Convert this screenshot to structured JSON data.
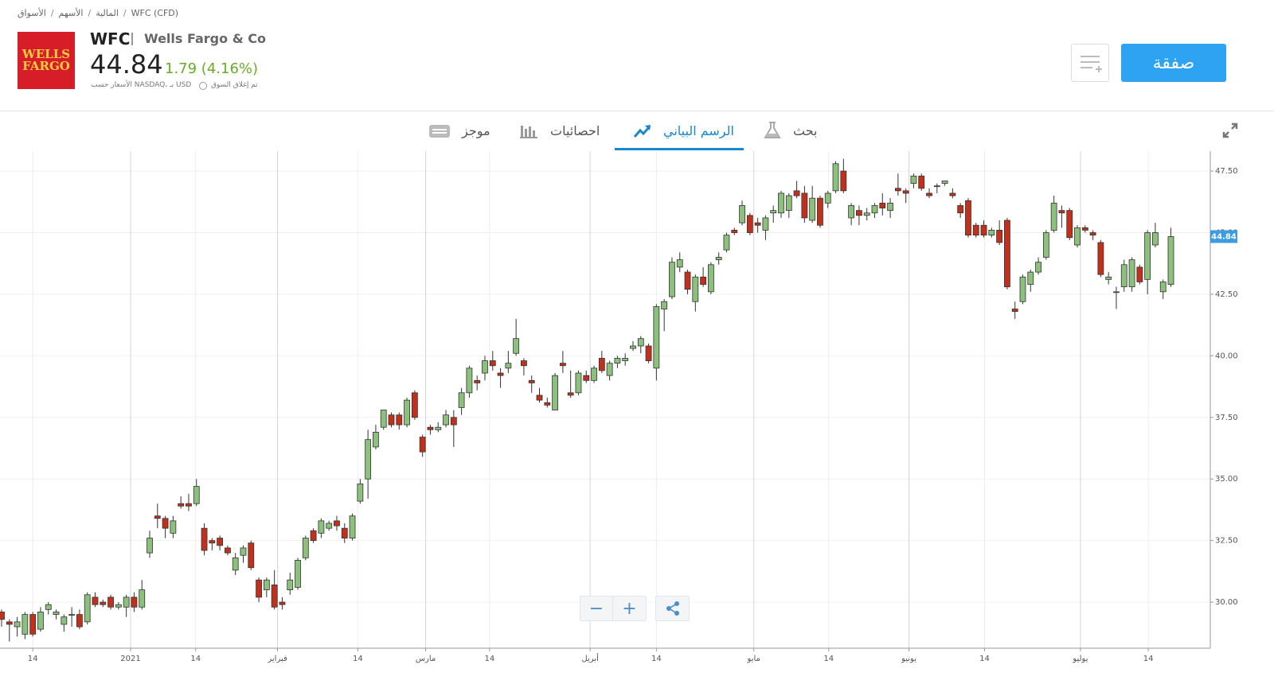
{
  "header": {
    "breadcrumb": [
      "الأسواق",
      "الأسهم",
      "المالية",
      "WFC (CFD)"
    ],
    "logo": "WELLS FARGO",
    "ticker": "WFC",
    "name": "Wells Fargo & Co",
    "price": "44.84",
    "change": "1.79 (4.16%)",
    "source": "الأسعار حسب NASDAQ، بـ USD",
    "status": "تم إغلاق السوق",
    "trade_button": "صفقة"
  },
  "tabs": [
    "موجز",
    "احصائيات",
    "الرسم البياني",
    "بحث"
  ],
  "active_tab": 2,
  "controls": {
    "zoom_out": "−",
    "zoom_in": "+"
  },
  "chart_data": {
    "type": "candlestick",
    "up_color": "#8cc07c",
    "down_color": "#c1301c",
    "grid": true,
    "open": [
      29.6,
      29.2,
      29.0,
      28.7,
      29.5,
      28.9,
      29.7,
      29.5,
      29.1,
      29.5,
      29.5,
      29.2,
      30.2,
      30.0,
      30.2,
      29.8,
      29.8,
      30.2,
      29.8,
      32.0,
      33.5,
      33.4,
      32.8,
      34.0,
      34.0,
      34.0,
      33.0,
      32.5,
      32.6,
      32.2,
      31.3,
      31.9,
      32.4,
      30.9,
      30.5,
      30.7,
      30.0,
      30.5,
      30.6,
      31.8,
      32.9,
      32.8,
      33.0,
      33.3,
      33.0,
      32.6,
      34.1,
      35.0,
      36.3,
      37.1,
      37.6,
      37.6,
      37.2,
      38.5,
      36.7,
      37.1,
      37.0,
      37.2,
      37.5,
      37.9,
      38.5,
      39.0,
      39.3,
      39.8,
      39.3,
      39.5,
      40.1,
      39.8,
      39.0,
      38.4,
      38.1,
      37.8,
      39.7,
      38.5,
      38.5,
      39.2,
      39.0,
      39.9,
      39.2,
      39.7,
      39.8,
      40.3,
      40.4,
      40.4,
      39.5,
      41.9,
      42.4,
      43.6,
      43.4,
      42.2,
      43.2,
      42.6,
      43.9,
      44.3,
      45.1,
      45.4,
      45.7,
      45.4,
      45.1,
      45.8,
      45.8,
      45.9,
      46.7,
      46.6,
      45.5,
      46.4,
      46.2,
      46.7,
      47.5,
      45.6,
      45.9,
      45.7,
      45.8,
      46.2,
      45.9,
      46.8,
      46.7,
      47.0,
      47.3,
      46.6,
      46.9,
      47.0,
      46.6,
      46.1,
      46.3,
      45.3,
      45.3,
      44.9,
      45.1,
      45.5,
      41.9,
      42.2,
      42.9,
      43.4,
      44.0,
      45.1,
      45.9,
      45.9,
      44.5,
      45.2,
      45.0,
      44.6,
      43.1,
      42.6,
      42.8,
      42.8,
      43.6,
      43.1,
      44.5,
      42.6,
      42.9
    ],
    "high": [
      29.7,
      29.3,
      29.4,
      29.6,
      29.6,
      29.8,
      30.0,
      29.7,
      29.5,
      29.8,
      29.7,
      30.4,
      30.4,
      30.1,
      30.3,
      30.0,
      30.3,
      30.4,
      30.9,
      32.9,
      34.0,
      33.5,
      33.5,
      34.3,
      34.4,
      35.0,
      33.2,
      32.6,
      32.7,
      32.3,
      32.0,
      32.3,
      32.5,
      31.0,
      31.0,
      31.3,
      30.2,
      31.2,
      31.8,
      32.7,
      33.0,
      33.4,
      33.3,
      33.5,
      33.2,
      33.6,
      35.0,
      37.0,
      37.2,
      37.8,
      37.7,
      37.7,
      38.3,
      38.6,
      36.8,
      37.2,
      37.3,
      37.8,
      37.8,
      38.7,
      39.6,
      39.2,
      40.0,
      40.2,
      39.5,
      40.2,
      41.5,
      39.9,
      39.2,
      38.7,
      38.3,
      39.3,
      40.2,
      39.4,
      39.4,
      39.4,
      39.6,
      40.2,
      39.8,
      40.0,
      40.1,
      40.6,
      40.8,
      40.5,
      42.1,
      42.3,
      44.0,
      44.2,
      43.5,
      43.3,
      43.6,
      43.8,
      44.2,
      45.0,
      45.2,
      46.3,
      45.8,
      45.6,
      45.7,
      46.1,
      46.7,
      46.6,
      47.1,
      46.9,
      46.9,
      46.5,
      46.7,
      47.9,
      48.0,
      46.2,
      46.1,
      46.0,
      46.2,
      46.6,
      46.4,
      47.4,
      46.8,
      47.4,
      47.4,
      46.8,
      47.0,
      47.1,
      46.8,
      46.2,
      46.4,
      45.4,
      45.5,
      45.2,
      45.5,
      45.6,
      42.2,
      43.3,
      43.5,
      44.0,
      45.1,
      46.5,
      46.1,
      46.0,
      45.3,
      45.3,
      45.1,
      44.7,
      43.4,
      42.8,
      43.9,
      44.0,
      43.7,
      45.1,
      45.4,
      43.1,
      45.2
    ],
    "low": [
      29.0,
      28.4,
      28.6,
      28.5,
      28.6,
      28.8,
      29.5,
      29.3,
      28.8,
      29.0,
      28.9,
      29.1,
      29.8,
      29.8,
      29.7,
      29.7,
      29.4,
      29.6,
      29.7,
      31.8,
      33.0,
      32.6,
      32.6,
      33.8,
      33.7,
      33.9,
      31.9,
      32.1,
      32.1,
      31.9,
      31.1,
      31.6,
      31.3,
      30.0,
      30.2,
      29.7,
      29.7,
      30.3,
      30.5,
      31.7,
      32.4,
      32.6,
      32.9,
      32.9,
      32.4,
      32.5,
      34.0,
      34.2,
      36.2,
      37.0,
      37.1,
      37.0,
      37.1,
      37.4,
      35.9,
      36.8,
      36.9,
      37.1,
      36.3,
      37.6,
      38.3,
      38.6,
      39.0,
      39.4,
      38.7,
      39.3,
      40.0,
      39.2,
      38.5,
      38.1,
      37.9,
      37.8,
      39.3,
      38.3,
      38.4,
      38.9,
      38.9,
      39.3,
      39.0,
      39.5,
      39.6,
      40.2,
      40.1,
      39.7,
      39.0,
      41.0,
      42.3,
      43.4,
      42.5,
      41.8,
      42.8,
      42.5,
      43.7,
      44.2,
      44.9,
      45.3,
      44.9,
      45.0,
      44.7,
      45.4,
      45.6,
      45.6,
      46.4,
      45.4,
      45.4,
      45.2,
      46.0,
      46.6,
      46.6,
      45.3,
      45.3,
      45.5,
      45.6,
      45.7,
      45.6,
      46.5,
      46.2,
      46.8,
      46.7,
      46.4,
      46.6,
      46.9,
      46.4,
      45.6,
      44.8,
      44.8,
      44.8,
      44.8,
      44.5,
      42.7,
      41.5,
      42.1,
      42.6,
      43.3,
      43.9,
      45.0,
      45.2,
      44.7,
      44.4,
      45.0,
      44.7,
      43.2,
      42.9,
      41.9,
      42.6,
      42.6,
      42.9,
      42.5,
      44.4,
      42.3,
      42.8
    ],
    "close": [
      29.3,
      29.1,
      29.2,
      29.5,
      28.7,
      29.6,
      29.9,
      29.6,
      29.4,
      29.5,
      29.0,
      30.3,
      29.9,
      29.9,
      29.8,
      29.9,
      30.2,
      29.8,
      30.5,
      32.6,
      33.4,
      33.0,
      33.3,
      33.9,
      33.9,
      34.7,
      32.1,
      32.4,
      32.3,
      32.0,
      31.8,
      32.2,
      31.4,
      30.2,
      30.9,
      29.8,
      29.9,
      30.9,
      31.7,
      32.6,
      32.5,
      33.3,
      33.2,
      33.1,
      32.6,
      33.5,
      34.8,
      36.6,
      36.9,
      37.8,
      37.2,
      37.2,
      38.2,
      37.5,
      36.1,
      37.0,
      37.1,
      37.6,
      37.2,
      38.5,
      39.5,
      38.9,
      39.8,
      39.6,
      39.2,
      39.7,
      40.7,
      39.6,
      38.9,
      38.2,
      38.0,
      39.2,
      39.6,
      38.4,
      39.3,
      39.0,
      39.5,
      39.4,
      39.7,
      39.9,
      39.9,
      40.4,
      40.7,
      39.8,
      42.0,
      42.2,
      43.8,
      43.9,
      42.7,
      43.2,
      42.9,
      43.7,
      44.0,
      44.9,
      45.0,
      46.1,
      45.0,
      45.3,
      45.6,
      45.9,
      46.6,
      46.5,
      46.5,
      45.6,
      46.4,
      45.3,
      46.6,
      47.8,
      46.7,
      46.1,
      45.7,
      45.8,
      46.1,
      46.0,
      46.2,
      46.7,
      46.6,
      47.3,
      46.8,
      46.5,
      46.9,
      47.1,
      46.5,
      45.8,
      44.9,
      44.9,
      44.9,
      45.1,
      44.6,
      42.8,
      41.8,
      43.2,
      43.4,
      43.8,
      45.0,
      46.2,
      45.8,
      44.8,
      45.2,
      45.1,
      44.9,
      43.3,
      43.2,
      42.6,
      43.7,
      43.9,
      43.0,
      45.0,
      45.0,
      43.0,
      44.84
    ],
    "ylim": [
      28.13,
      48.31
    ],
    "yticks": [
      {
        "value": 30,
        "label": "30.00"
      },
      {
        "value": 32.5,
        "label": "32.50"
      },
      {
        "value": 35,
        "label": "35.00"
      },
      {
        "value": 37.5,
        "label": "37.50"
      },
      {
        "value": 40,
        "label": "40.00"
      },
      {
        "value": 42.5,
        "label": "42.50"
      },
      {
        "value": 45,
        "label": "45.00"
      },
      {
        "value": 47.5,
        "label": "47.50"
      }
    ],
    "xticks": [
      {
        "value": 4,
        "label": "14"
      },
      {
        "value": 16.55,
        "label": "2021"
      },
      {
        "value": 24.9,
        "label": "14"
      },
      {
        "value": 35.4,
        "label": "فبراير"
      },
      {
        "value": 45.7,
        "label": "14"
      },
      {
        "value": 54.4,
        "label": "مارس"
      },
      {
        "value": 62.6,
        "label": "14"
      },
      {
        "value": 75.5,
        "label": "أبريل"
      },
      {
        "value": 84,
        "label": "14"
      },
      {
        "value": 96.5,
        "label": "مايو"
      },
      {
        "value": 106.1,
        "label": "14"
      },
      {
        "value": 116.4,
        "label": "يونيو"
      },
      {
        "value": 126.1,
        "label": "14"
      },
      {
        "value": 138.4,
        "label": "يوليو"
      },
      {
        "value": 147.1,
        "label": "14"
      }
    ]
  }
}
